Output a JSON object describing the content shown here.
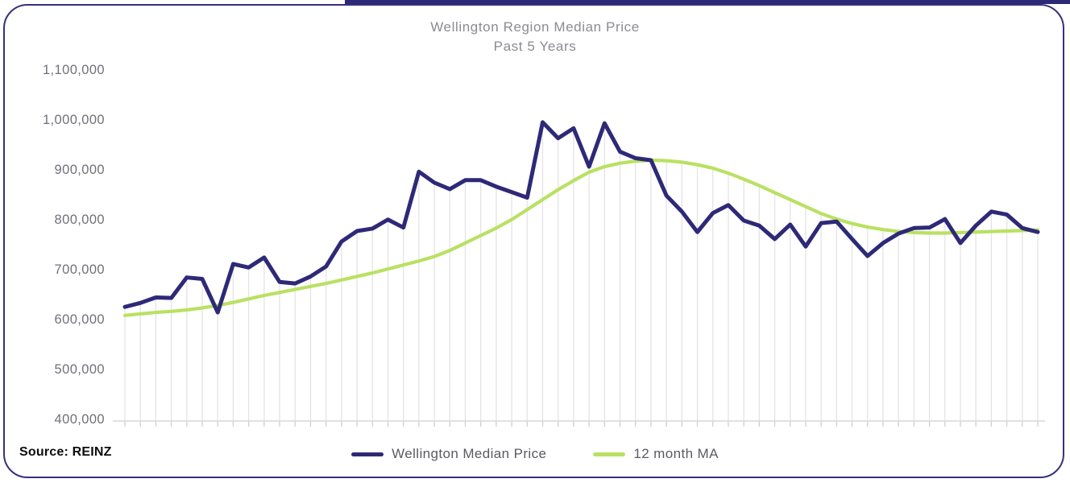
{
  "title": {
    "line1": "Wellington Region Median Price",
    "line2": "Past 5 Years"
  },
  "source": "Source: REINZ",
  "legend": [
    {
      "label": "Wellington Median Price",
      "color": "#2e2977"
    },
    {
      "label": "12 month MA",
      "color": "#b9e162"
    }
  ],
  "colors": {
    "median_line": "#2e2977",
    "ma_line": "#b9e162",
    "card_border": "#37307e",
    "dropline": "#e4e4e8",
    "tick": "#cfcfd4",
    "baseline": "#d7d7db",
    "axis_text": "#70707a",
    "title_text": "#8b8b92",
    "legend_text": "#5a5a62"
  },
  "chart_data": {
    "type": "line",
    "title": "Wellington Region Median Price",
    "subtitle": "Past 5 Years",
    "x_unit": "month",
    "n_points": 60,
    "x_axis_labels": "none",
    "ylim": [
      400000,
      1100000
    ],
    "y_ticks": [
      {
        "value": 1100000,
        "label": "1,100,000"
      },
      {
        "value": 1000000,
        "label": "1,000,000"
      },
      {
        "value": 900000,
        "label": "900,000"
      },
      {
        "value": 800000,
        "label": "800,000"
      },
      {
        "value": 700000,
        "label": "700,000"
      },
      {
        "value": 600000,
        "label": "600,000"
      },
      {
        "value": 500000,
        "label": "500,000"
      },
      {
        "value": 400000,
        "label": "400,000"
      }
    ],
    "grid": "vertical droplines at each monthly point",
    "legend_position": "bottom-center",
    "source": "Source: REINZ",
    "series": [
      {
        "name": "Wellington Median Price",
        "color": "#2e2977",
        "values": [
          627000,
          635000,
          646000,
          645000,
          686000,
          683000,
          616000,
          713000,
          706000,
          726000,
          677000,
          674000,
          688000,
          708000,
          758000,
          779000,
          784000,
          802000,
          786000,
          898000,
          876000,
          863000,
          881000,
          881000,
          868000,
          857000,
          846000,
          997000,
          965000,
          985000,
          908000,
          995000,
          938000,
          925000,
          921000,
          850000,
          818000,
          777000,
          815000,
          831000,
          800000,
          790000,
          763000,
          792000,
          748000,
          795000,
          798000,
          763000,
          729000,
          755000,
          774000,
          785000,
          786000,
          803000,
          755000,
          790000,
          818000,
          812000,
          785000,
          777000
        ]
      },
      {
        "name": "12 month MA",
        "color": "#b9e162",
        "values": [
          610000,
          613000,
          616000,
          618000,
          621000,
          625000,
          630000,
          636000,
          643000,
          650000,
          656000,
          662000,
          668000,
          674000,
          681000,
          688000,
          695000,
          703000,
          711000,
          719000,
          728000,
          740000,
          755000,
          770000,
          785000,
          802000,
          822000,
          842000,
          862000,
          880000,
          897000,
          908000,
          915000,
          919000,
          921000,
          920000,
          917000,
          912000,
          905000,
          895000,
          883000,
          870000,
          856000,
          842000,
          828000,
          814000,
          803000,
          794000,
          787000,
          782000,
          778000,
          776000,
          775000,
          775000,
          776000,
          777000,
          778000,
          779000,
          780000,
          781000
        ]
      }
    ]
  }
}
